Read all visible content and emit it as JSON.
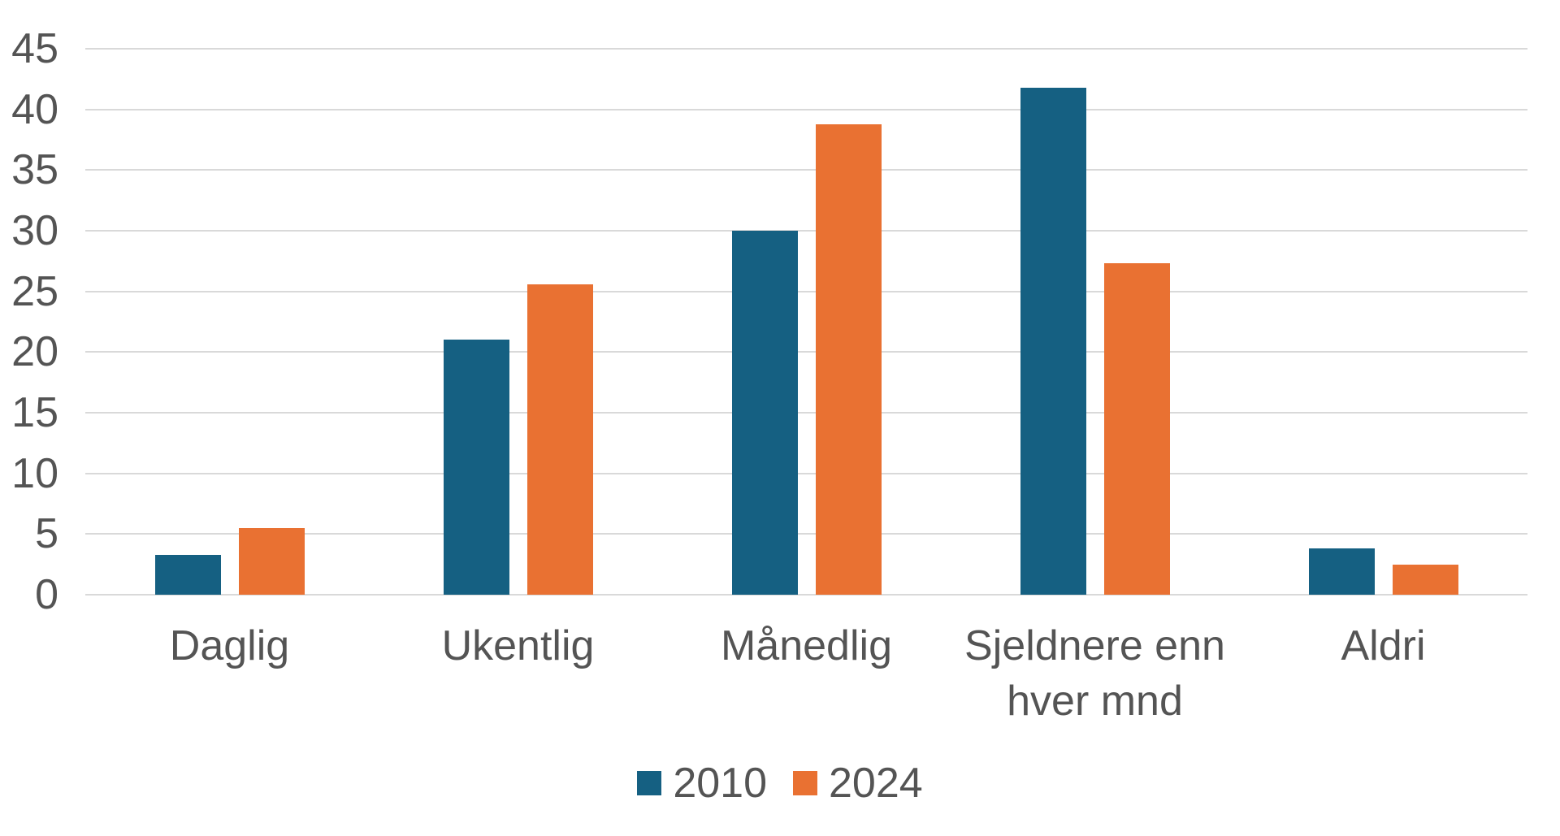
{
  "chart_data": {
    "type": "bar",
    "title": "",
    "xlabel": "",
    "ylabel": "",
    "categories": [
      "Daglig",
      "Ukentlig",
      "Månedlig",
      "Sjeldnere enn hver mnd",
      "Aldri"
    ],
    "series": [
      {
        "name": "2010",
        "color": "#156082",
        "values": [
          3.3,
          21,
          30,
          41.8,
          3.8
        ]
      },
      {
        "name": "2024",
        "color": "#E97132",
        "values": [
          5.5,
          25.6,
          38.8,
          27.3,
          2.5
        ]
      }
    ],
    "ylim": [
      0,
      45
    ],
    "yticks": [
      0,
      5,
      10,
      15,
      20,
      25,
      30,
      35,
      40,
      45
    ],
    "grid": true,
    "legend_position": "bottom",
    "colors": {
      "gridline": "#D9D9D9",
      "axis_text": "#545454",
      "background": "#FFFFFF"
    }
  }
}
